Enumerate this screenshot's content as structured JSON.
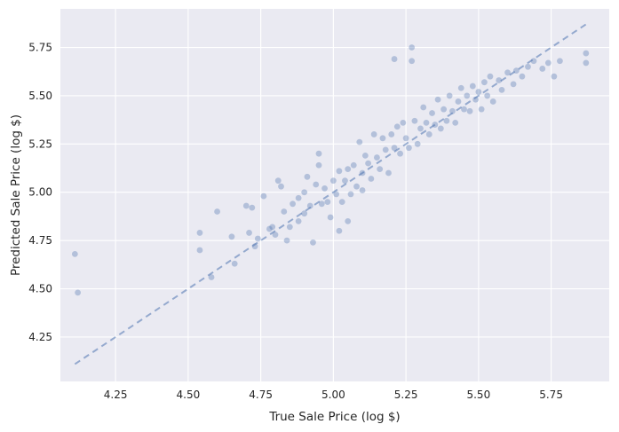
{
  "chart_data": {
    "type": "scatter",
    "title": "",
    "xlabel": "True Sale Price (log $)",
    "ylabel": "Predicted Sale Price (log $)",
    "xlim": [
      4.06,
      5.95
    ],
    "ylim": [
      4.02,
      5.95
    ],
    "x_ticks": [
      "4.25",
      "4.50",
      "4.75",
      "5.00",
      "5.25",
      "5.50",
      "5.75"
    ],
    "y_ticks": [
      "4.25",
      "4.50",
      "4.75",
      "5.00",
      "5.25",
      "5.50",
      "5.75"
    ],
    "grid": true,
    "background_color": "#eaeaf2",
    "point_color": "#4c72b0",
    "point_opacity": 0.35,
    "reference_line": {
      "style": "dashed",
      "color": "#4c72b0",
      "points": [
        [
          4.11,
          4.11
        ],
        [
          5.87,
          5.87
        ]
      ]
    },
    "series": [
      {
        "points": [
          [
            4.11,
            4.68
          ],
          [
            4.12,
            4.48
          ],
          [
            4.54,
            4.79
          ],
          [
            4.54,
            4.7
          ],
          [
            4.58,
            4.56
          ],
          [
            4.6,
            4.9
          ],
          [
            4.65,
            4.77
          ],
          [
            4.66,
            4.63
          ],
          [
            4.7,
            4.93
          ],
          [
            4.71,
            4.79
          ],
          [
            4.72,
            4.92
          ],
          [
            4.73,
            4.72
          ],
          [
            4.74,
            4.76
          ],
          [
            4.76,
            4.98
          ],
          [
            4.78,
            4.81
          ],
          [
            4.79,
            4.82
          ],
          [
            4.8,
            4.78
          ],
          [
            4.81,
            5.06
          ],
          [
            4.82,
            5.03
          ],
          [
            4.83,
            4.9
          ],
          [
            4.84,
            4.75
          ],
          [
            4.85,
            4.82
          ],
          [
            4.86,
            4.94
          ],
          [
            4.88,
            4.85
          ],
          [
            4.88,
            4.97
          ],
          [
            4.9,
            5.0
          ],
          [
            4.9,
            4.89
          ],
          [
            4.91,
            5.08
          ],
          [
            4.92,
            4.93
          ],
          [
            4.93,
            4.74
          ],
          [
            4.94,
            5.04
          ],
          [
            4.95,
            5.14
          ],
          [
            4.95,
            5.2
          ],
          [
            4.96,
            4.94
          ],
          [
            4.97,
            5.02
          ],
          [
            4.98,
            4.95
          ],
          [
            4.99,
            4.87
          ],
          [
            5.0,
            5.06
          ],
          [
            5.01,
            4.99
          ],
          [
            5.02,
            5.11
          ],
          [
            5.02,
            4.8
          ],
          [
            5.03,
            4.95
          ],
          [
            5.04,
            5.06
          ],
          [
            5.05,
            5.12
          ],
          [
            5.05,
            4.85
          ],
          [
            5.06,
            4.99
          ],
          [
            5.07,
            5.14
          ],
          [
            5.08,
            5.03
          ],
          [
            5.09,
            5.26
          ],
          [
            5.1,
            5.1
          ],
          [
            5.1,
            5.01
          ],
          [
            5.11,
            5.19
          ],
          [
            5.12,
            5.15
          ],
          [
            5.13,
            5.07
          ],
          [
            5.14,
            5.3
          ],
          [
            5.15,
            5.18
          ],
          [
            5.16,
            5.12
          ],
          [
            5.17,
            5.28
          ],
          [
            5.18,
            5.22
          ],
          [
            5.19,
            5.1
          ],
          [
            5.2,
            5.3
          ],
          [
            5.21,
            5.69
          ],
          [
            5.21,
            5.23
          ],
          [
            5.22,
            5.34
          ],
          [
            5.23,
            5.2
          ],
          [
            5.24,
            5.36
          ],
          [
            5.25,
            5.28
          ],
          [
            5.26,
            5.23
          ],
          [
            5.27,
            5.75
          ],
          [
            5.27,
            5.68
          ],
          [
            5.28,
            5.37
          ],
          [
            5.29,
            5.25
          ],
          [
            5.3,
            5.33
          ],
          [
            5.31,
            5.44
          ],
          [
            5.32,
            5.36
          ],
          [
            5.33,
            5.3
          ],
          [
            5.34,
            5.41
          ],
          [
            5.35,
            5.35
          ],
          [
            5.36,
            5.48
          ],
          [
            5.37,
            5.33
          ],
          [
            5.38,
            5.43
          ],
          [
            5.39,
            5.37
          ],
          [
            5.4,
            5.5
          ],
          [
            5.41,
            5.42
          ],
          [
            5.42,
            5.36
          ],
          [
            5.43,
            5.47
          ],
          [
            5.44,
            5.54
          ],
          [
            5.45,
            5.43
          ],
          [
            5.46,
            5.5
          ],
          [
            5.47,
            5.42
          ],
          [
            5.48,
            5.55
          ],
          [
            5.49,
            5.48
          ],
          [
            5.5,
            5.52
          ],
          [
            5.51,
            5.43
          ],
          [
            5.52,
            5.57
          ],
          [
            5.53,
            5.5
          ],
          [
            5.54,
            5.6
          ],
          [
            5.55,
            5.47
          ],
          [
            5.57,
            5.58
          ],
          [
            5.58,
            5.53
          ],
          [
            5.6,
            5.62
          ],
          [
            5.62,
            5.56
          ],
          [
            5.63,
            5.63
          ],
          [
            5.65,
            5.6
          ],
          [
            5.67,
            5.65
          ],
          [
            5.69,
            5.68
          ],
          [
            5.72,
            5.64
          ],
          [
            5.74,
            5.67
          ],
          [
            5.76,
            5.6
          ],
          [
            5.78,
            5.68
          ],
          [
            5.87,
            5.72
          ],
          [
            5.87,
            5.67
          ]
        ]
      }
    ]
  }
}
